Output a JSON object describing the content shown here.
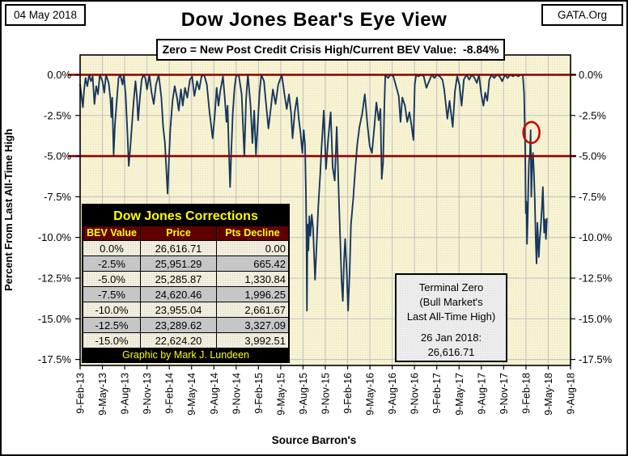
{
  "header": {
    "date_badge": "04 May 2018",
    "site_badge": "GATA.Org",
    "subtitle": "Zero = New Post Credit Crisis High/Current BEV Value:  -8.84%"
  },
  "chart_data": {
    "type": "line",
    "title": "Dow Jones Bear's Eye View",
    "ylabel": "Percent From Last All-Time High",
    "xlabel": "",
    "source_label": "Source Barron's",
    "legend": "none",
    "grid": true,
    "ylim": [
      -17.5,
      0
    ],
    "y_ticks": [
      "0.0%",
      "-2.5%",
      "-5.0%",
      "-7.5%",
      "-10.0%",
      "-12.5%",
      "-15.0%",
      "-17.5%"
    ],
    "x_ticks": [
      "9-Feb-13",
      "9-May-13",
      "9-Aug-13",
      "9-Nov-13",
      "9-Feb-14",
      "9-May-14",
      "9-Aug-14",
      "9-Nov-14",
      "9-Feb-15",
      "9-May-15",
      "9-Aug-15",
      "9-Nov-15",
      "9-Feb-16",
      "9-May-16",
      "9-Aug-16",
      "9-Nov-16",
      "9-Feb-17",
      "9-May-17",
      "9-Aug-17",
      "9-Nov-17",
      "9-Feb-18",
      "9-May-18",
      "9-Aug-18"
    ],
    "red_reference_lines_pct": [
      0,
      -5
    ],
    "current_bev_pct": -8.84,
    "annotation_circle": {
      "year": 2018.158,
      "value_pct": -3.4
    },
    "colors": {
      "line": "#17375E",
      "reference": "#8B0000",
      "circle": "#CC0000",
      "plot_bg": "#F8F4D3",
      "grid": "#BFBFBF"
    },
    "series": [
      {
        "name": "Dow Jones BEV (% below last all-time high, daily closes)",
        "points": [
          [
            2013.11,
            -0.6
          ],
          [
            2013.125,
            -1.3
          ],
          [
            2013.14,
            -2.0
          ],
          [
            2013.155,
            -0.9
          ],
          [
            2013.17,
            -0.2
          ],
          [
            2013.19,
            -0.7
          ],
          [
            2013.21,
            0
          ],
          [
            2013.23,
            -0.4
          ],
          [
            2013.25,
            -0.1
          ],
          [
            2013.27,
            -1.8
          ],
          [
            2013.29,
            -0.7
          ],
          [
            2013.31,
            -1.2
          ],
          [
            2013.33,
            0
          ],
          [
            2013.36,
            -0.4
          ],
          [
            2013.38,
            -1.1
          ],
          [
            2013.4,
            0
          ],
          [
            2013.43,
            -0.5
          ],
          [
            2013.45,
            -1.5
          ],
          [
            2013.46,
            -2.6
          ],
          [
            2013.47,
            -1.4
          ],
          [
            2013.485,
            -4.9
          ],
          [
            2013.5,
            -3.1
          ],
          [
            2013.52,
            -1.6
          ],
          [
            2013.54,
            -0.2
          ],
          [
            2013.56,
            0
          ],
          [
            2013.585,
            -0.6
          ],
          [
            2013.6,
            0
          ],
          [
            2013.62,
            -1.3
          ],
          [
            2013.64,
            -3.6
          ],
          [
            2013.655,
            -5.6
          ],
          [
            2013.67,
            -4.6
          ],
          [
            2013.69,
            -3.1
          ],
          [
            2013.71,
            -1.6
          ],
          [
            2013.73,
            -0.4
          ],
          [
            2013.745,
            -1.3
          ],
          [
            2013.76,
            -2.8
          ],
          [
            2013.78,
            -1.4
          ],
          [
            2013.8,
            -0.3
          ],
          [
            2013.82,
            0
          ],
          [
            2013.84,
            -0.2
          ],
          [
            2013.86,
            -0.9
          ],
          [
            2013.885,
            0
          ],
          [
            2013.91,
            -1.1
          ],
          [
            2013.935,
            -1.8
          ],
          [
            2013.96,
            -0.6
          ],
          [
            2013.99,
            0
          ],
          [
            2014.02,
            -1.4
          ],
          [
            2014.04,
            -3.2
          ],
          [
            2014.06,
            -4.2
          ],
          [
            2014.09,
            -7.3
          ],
          [
            2014.105,
            -5.2
          ],
          [
            2014.12,
            -3.4
          ],
          [
            2014.145,
            -1.6
          ],
          [
            2014.17,
            -0.7
          ],
          [
            2014.195,
            -1.4
          ],
          [
            2014.215,
            -2.2
          ],
          [
            2014.24,
            -0.9
          ],
          [
            2014.26,
            -1.9
          ],
          [
            2014.285,
            -0.8
          ],
          [
            2014.31,
            -1.4
          ],
          [
            2014.34,
            -0.3
          ],
          [
            2014.365,
            -0.1
          ],
          [
            2014.39,
            -1.3
          ],
          [
            2014.42,
            -0.4
          ],
          [
            2014.445,
            -0.9
          ],
          [
            2014.47,
            -0.1
          ],
          [
            2014.5,
            0
          ],
          [
            2014.53,
            -0.6
          ],
          [
            2014.56,
            -2.3
          ],
          [
            2014.595,
            -3.9
          ],
          [
            2014.62,
            -2.4
          ],
          [
            2014.64,
            -0.8
          ],
          [
            2014.66,
            -1.9
          ],
          [
            2014.68,
            -1.0
          ],
          [
            2014.71,
            -0.1
          ],
          [
            2014.73,
            -1.4
          ],
          [
            2014.75,
            -2.9
          ],
          [
            2014.762,
            -1.9
          ],
          [
            2014.775,
            -4.3
          ],
          [
            2014.79,
            -6.9
          ],
          [
            2014.805,
            -4.6
          ],
          [
            2014.82,
            -2.4
          ],
          [
            2014.84,
            -0.8
          ],
          [
            2014.86,
            0
          ],
          [
            2014.89,
            -0.1
          ],
          [
            2014.92,
            -1.2
          ],
          [
            2014.95,
            -5.0
          ],
          [
            2014.97,
            -1.5
          ],
          [
            2014.99,
            0
          ],
          [
            2015.02,
            -1.9
          ],
          [
            2015.04,
            -4.2
          ],
          [
            2015.06,
            -2.2
          ],
          [
            2015.08,
            -4.9
          ],
          [
            2015.1,
            -3.0
          ],
          [
            2015.12,
            -1.1
          ],
          [
            2015.14,
            0
          ],
          [
            2015.17,
            -0.4
          ],
          [
            2015.19,
            -1.6
          ],
          [
            2015.22,
            -3.3
          ],
          [
            2015.25,
            -1.9
          ],
          [
            2015.27,
            -0.9
          ],
          [
            2015.3,
            -1.8
          ],
          [
            2015.33,
            -0.6
          ],
          [
            2015.37,
            0
          ],
          [
            2015.4,
            -1.2
          ],
          [
            2015.425,
            -2.1
          ],
          [
            2015.45,
            -1.2
          ],
          [
            2015.475,
            -2.4
          ],
          [
            2015.49,
            -3.9
          ],
          [
            2015.515,
            -2.3
          ],
          [
            2015.54,
            -1.4
          ],
          [
            2015.56,
            -2.7
          ],
          [
            2015.58,
            -3.6
          ],
          [
            2015.6,
            -4.8
          ],
          [
            2015.615,
            -3.4
          ],
          [
            2015.63,
            -4.3
          ],
          [
            2015.64,
            -7.2
          ],
          [
            2015.646,
            -10.1
          ],
          [
            2015.652,
            -14.5
          ],
          [
            2015.658,
            -9.2
          ],
          [
            2015.668,
            -10.8
          ],
          [
            2015.678,
            -8.7
          ],
          [
            2015.69,
            -9.9
          ],
          [
            2015.705,
            -8.6
          ],
          [
            2015.72,
            -9.4
          ],
          [
            2015.742,
            -12.6
          ],
          [
            2015.76,
            -10.5
          ],
          [
            2015.78,
            -8.0
          ],
          [
            2015.8,
            -6.1
          ],
          [
            2015.815,
            -4.5
          ],
          [
            2015.84,
            -2.2
          ],
          [
            2015.865,
            -5.8
          ],
          [
            2015.89,
            -3.9
          ],
          [
            2015.917,
            -2.3
          ],
          [
            2015.94,
            -5.7
          ],
          [
            2015.963,
            -6.5
          ],
          [
            2015.985,
            -3.2
          ],
          [
            2016.01,
            -7.7
          ],
          [
            2016.04,
            -12.7
          ],
          [
            2016.053,
            -13.9
          ],
          [
            2016.068,
            -11.3
          ],
          [
            2016.08,
            -10.1
          ],
          [
            2016.1,
            -12.4
          ],
          [
            2016.112,
            -14.5
          ],
          [
            2016.13,
            -12.2
          ],
          [
            2016.145,
            -9.2
          ],
          [
            2016.17,
            -7.6
          ],
          [
            2016.19,
            -6.0
          ],
          [
            2016.215,
            -4.3
          ],
          [
            2016.24,
            -3.2
          ],
          [
            2016.27,
            -2.4
          ],
          [
            2016.3,
            -1.2
          ],
          [
            2016.33,
            -3.1
          ],
          [
            2016.355,
            -4.4
          ],
          [
            2016.38,
            -4.8
          ],
          [
            2016.405,
            -3.3
          ],
          [
            2016.43,
            -1.7
          ],
          [
            2016.455,
            -2.8
          ],
          [
            2016.475,
            -2.1
          ],
          [
            2016.49,
            -6.4
          ],
          [
            2016.505,
            -5.4
          ],
          [
            2016.52,
            -1.8
          ],
          [
            2016.53,
            0
          ],
          [
            2016.56,
            -0.2
          ],
          [
            2016.59,
            0
          ],
          [
            2016.62,
            -0.1
          ],
          [
            2016.65,
            -0.7
          ],
          [
            2016.68,
            -1.3
          ],
          [
            2016.7,
            -2.9
          ],
          [
            2016.72,
            -1.4
          ],
          [
            2016.75,
            -1.9
          ],
          [
            2016.775,
            -2.9
          ],
          [
            2016.8,
            -2.3
          ],
          [
            2016.82,
            -3.0
          ],
          [
            2016.845,
            -4.0
          ],
          [
            2016.86,
            -0.6
          ],
          [
            2016.875,
            0
          ],
          [
            2016.9,
            -0.1
          ],
          [
            2016.93,
            0
          ],
          [
            2016.96,
            -0.1
          ],
          [
            2016.99,
            -0.8
          ],
          [
            2017.02,
            -0.4
          ],
          [
            2017.05,
            0
          ],
          [
            2017.08,
            -0.2
          ],
          [
            2017.11,
            0
          ],
          [
            2017.14,
            -0.1
          ],
          [
            2017.17,
            -0.3
          ],
          [
            2017.19,
            -0.9
          ],
          [
            2017.225,
            -2.7
          ],
          [
            2017.25,
            -1.6
          ],
          [
            2017.285,
            -3.2
          ],
          [
            2017.31,
            -1.0
          ],
          [
            2017.335,
            -0.1
          ],
          [
            2017.36,
            -0.6
          ],
          [
            2017.385,
            -1.9
          ],
          [
            2017.41,
            -0.3
          ],
          [
            2017.44,
            0
          ],
          [
            2017.47,
            -0.3
          ],
          [
            2017.5,
            0
          ],
          [
            2017.53,
            -0.2
          ],
          [
            2017.555,
            -0.5
          ],
          [
            2017.58,
            0
          ],
          [
            2017.605,
            -1.2
          ],
          [
            2017.63,
            -1.9
          ],
          [
            2017.65,
            -1.1
          ],
          [
            2017.672,
            -1.6
          ],
          [
            2017.695,
            -0.3
          ],
          [
            2017.72,
            0
          ],
          [
            2017.75,
            -0.2
          ],
          [
            2017.78,
            0
          ],
          [
            2017.81,
            -0.1
          ],
          [
            2017.84,
            -0.4
          ],
          [
            2017.87,
            0
          ],
          [
            2017.9,
            -0.2
          ],
          [
            2017.93,
            0
          ],
          [
            2017.96,
            -0.1
          ],
          [
            2017.99,
            0
          ],
          [
            2018.02,
            -0.1
          ],
          [
            2018.045,
            0
          ],
          [
            2018.07,
            0
          ],
          [
            2018.085,
            -1.1
          ],
          [
            2018.096,
            -4.1
          ],
          [
            2018.104,
            -8.5
          ],
          [
            2018.11,
            -7.8
          ],
          [
            2018.118,
            -10.4
          ],
          [
            2018.125,
            -9.0
          ],
          [
            2018.133,
            -6.7
          ],
          [
            2018.14,
            -5.3
          ],
          [
            2018.15,
            -4.9
          ],
          [
            2018.158,
            -3.4
          ],
          [
            2018.166,
            -7.5
          ],
          [
            2018.175,
            -5.6
          ],
          [
            2018.185,
            -4.8
          ],
          [
            2018.195,
            -6.0
          ],
          [
            2018.205,
            -7.6
          ],
          [
            2018.215,
            -10.0
          ],
          [
            2018.225,
            -11.6
          ],
          [
            2018.235,
            -9.1
          ],
          [
            2018.25,
            -11.2
          ],
          [
            2018.26,
            -10.1
          ],
          [
            2018.27,
            -9.5
          ],
          [
            2018.285,
            -8.1
          ],
          [
            2018.295,
            -6.9
          ],
          [
            2018.31,
            -9.7
          ],
          [
            2018.32,
            -8.9
          ],
          [
            2018.33,
            -10.1
          ],
          [
            2018.34,
            -8.84
          ]
        ]
      }
    ]
  },
  "corrections_table": {
    "title": "Dow Jones Corrections",
    "columns": [
      "BEV Value",
      "Price",
      "Pts Decline"
    ],
    "rows": [
      [
        "0.0%",
        "26,616.71",
        "0.00"
      ],
      [
        "-2.5%",
        "25,951.29",
        "665.42"
      ],
      [
        "-5.0%",
        "25,285.87",
        "1,330.84"
      ],
      [
        "-7.5%",
        "24,620.46",
        "1,996.25"
      ],
      [
        "-10.0%",
        "23,955.04",
        "2,661.67"
      ],
      [
        "-12.5%",
        "23,289.62",
        "3,327.09"
      ],
      [
        "-15.0%",
        "22,624.20",
        "3,992.51"
      ]
    ],
    "footer": "Graphic by Mark J. Lundeen"
  },
  "terminal_box": {
    "lines": [
      "Terminal Zero",
      "(Bull Market's",
      "Last All-Time High)",
      "26 Jan 2018:",
      "26,616.71"
    ]
  }
}
